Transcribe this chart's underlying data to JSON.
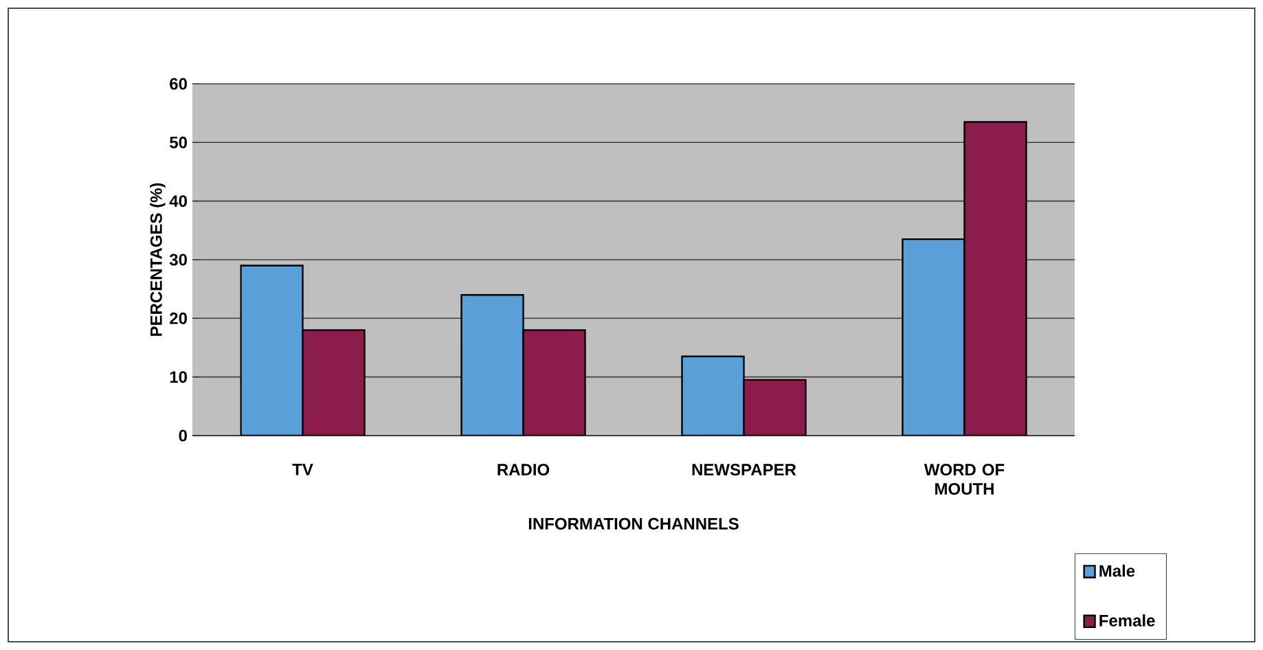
{
  "chart_data": {
    "type": "bar",
    "xlabel": "INFORMATION CHANNELS",
    "ylabel": "PERCENTAGES (%)",
    "categories": [
      "TV",
      "RADIO",
      "NEWSPAPER",
      "WORD OF MOUTH"
    ],
    "series": [
      {
        "name": "Male",
        "color": "#5b9fd8",
        "values": [
          29,
          24,
          13.5,
          33.5
        ]
      },
      {
        "name": "Female",
        "color": "#8b1c4c",
        "values": [
          18,
          18,
          9.5,
          53.5
        ]
      }
    ],
    "ylim": [
      0,
      60
    ],
    "yticks": [
      0,
      10,
      20,
      30,
      40,
      50,
      60
    ],
    "grid": "y",
    "legend": "bottom right"
  }
}
